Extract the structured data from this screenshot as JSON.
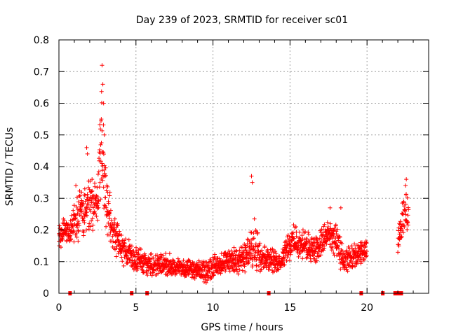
{
  "chart_data": {
    "type": "scatter",
    "title": "Day 239 of 2023, SRMTID for receiver sc01",
    "xlabel": "GPS time / hours",
    "ylabel": "SRMTID / TECUs",
    "xlim": [
      0,
      24
    ],
    "ylim": [
      0,
      0.8
    ],
    "xticks": [
      0,
      5,
      10,
      15,
      20
    ],
    "xtick_labels": [
      "0",
      "5",
      "10",
      "15",
      "20"
    ],
    "yticks": [
      0,
      0.1,
      0.2,
      0.3,
      0.4,
      0.5,
      0.6,
      0.7,
      0.8
    ],
    "ytick_labels": [
      "0",
      "0.1",
      "0.2",
      "0.3",
      "0.4",
      "0.5",
      "0.6",
      "0.7",
      "0.8"
    ],
    "grid": true,
    "marker": "+",
    "color": "#ff0000",
    "series": [
      {
        "name": "sc01",
        "envelope": [
          {
            "x": 0.0,
            "y": 0.17,
            "spread": 0.05
          },
          {
            "x": 0.3,
            "y": 0.2,
            "spread": 0.04
          },
          {
            "x": 0.6,
            "y": 0.19,
            "spread": 0.04
          },
          {
            "x": 1.0,
            "y": 0.22,
            "spread": 0.08
          },
          {
            "x": 1.5,
            "y": 0.26,
            "spread": 0.1
          },
          {
            "x": 1.9,
            "y": 0.28,
            "spread": 0.1
          },
          {
            "x": 2.2,
            "y": 0.27,
            "spread": 0.08
          },
          {
            "x": 2.5,
            "y": 0.3,
            "spread": 0.1
          },
          {
            "x": 2.8,
            "y": 0.45,
            "spread": 0.28
          },
          {
            "x": 3.1,
            "y": 0.28,
            "spread": 0.12
          },
          {
            "x": 3.5,
            "y": 0.2,
            "spread": 0.08
          },
          {
            "x": 4.0,
            "y": 0.14,
            "spread": 0.06
          },
          {
            "x": 4.5,
            "y": 0.13,
            "spread": 0.05
          },
          {
            "x": 5.0,
            "y": 0.11,
            "spread": 0.05
          },
          {
            "x": 6.0,
            "y": 0.09,
            "spread": 0.04
          },
          {
            "x": 7.0,
            "y": 0.09,
            "spread": 0.04
          },
          {
            "x": 8.0,
            "y": 0.08,
            "spread": 0.03
          },
          {
            "x": 9.0,
            "y": 0.07,
            "spread": 0.035
          },
          {
            "x": 9.6,
            "y": 0.07,
            "spread": 0.04
          },
          {
            "x": 10.0,
            "y": 0.085,
            "spread": 0.04
          },
          {
            "x": 11.0,
            "y": 0.1,
            "spread": 0.04
          },
          {
            "x": 12.0,
            "y": 0.11,
            "spread": 0.05
          },
          {
            "x": 12.8,
            "y": 0.15,
            "spread": 0.1
          },
          {
            "x": 13.2,
            "y": 0.12,
            "spread": 0.05
          },
          {
            "x": 14.0,
            "y": 0.1,
            "spread": 0.04
          },
          {
            "x": 14.4,
            "y": 0.1,
            "spread": 0.03
          },
          {
            "x": 14.8,
            "y": 0.15,
            "spread": 0.05
          },
          {
            "x": 15.2,
            "y": 0.16,
            "spread": 0.06
          },
          {
            "x": 16.0,
            "y": 0.15,
            "spread": 0.05
          },
          {
            "x": 16.8,
            "y": 0.14,
            "spread": 0.05
          },
          {
            "x": 17.5,
            "y": 0.19,
            "spread": 0.06
          },
          {
            "x": 18.0,
            "y": 0.16,
            "spread": 0.06
          },
          {
            "x": 18.5,
            "y": 0.1,
            "spread": 0.05
          },
          {
            "x": 19.0,
            "y": 0.11,
            "spread": 0.05
          },
          {
            "x": 19.5,
            "y": 0.12,
            "spread": 0.05
          },
          {
            "x": 20.0,
            "y": 0.14,
            "spread": 0.03
          },
          {
            "x": 21.0,
            "y": null,
            "spread": 0
          },
          {
            "x": 22.0,
            "y": 0.17,
            "spread": 0.05
          },
          {
            "x": 22.4,
            "y": 0.26,
            "spread": 0.08
          },
          {
            "x": 22.7,
            "y": 0.24,
            "spread": 0.06
          }
        ],
        "peaks": [
          {
            "x": 2.8,
            "y": 0.72
          },
          {
            "x": 2.85,
            "y": 0.66
          },
          {
            "x": 2.9,
            "y": 0.6
          },
          {
            "x": 2.75,
            "y": 0.55
          },
          {
            "x": 2.95,
            "y": 0.5
          },
          {
            "x": 1.8,
            "y": 0.46
          },
          {
            "x": 1.85,
            "y": 0.44
          },
          {
            "x": 12.5,
            "y": 0.37
          },
          {
            "x": 12.55,
            "y": 0.35
          },
          {
            "x": 22.55,
            "y": 0.36
          },
          {
            "x": 22.5,
            "y": 0.34
          },
          {
            "x": 17.6,
            "y": 0.27
          },
          {
            "x": 18.3,
            "y": 0.27
          },
          {
            "x": 2.15,
            "y": 0.36
          },
          {
            "x": 1.1,
            "y": 0.34
          }
        ],
        "gap_markers_x": [
          0.7,
          4.7,
          5.7,
          13.6,
          19.6,
          21.0,
          21.8,
          22.0,
          22.2
        ]
      }
    ]
  }
}
